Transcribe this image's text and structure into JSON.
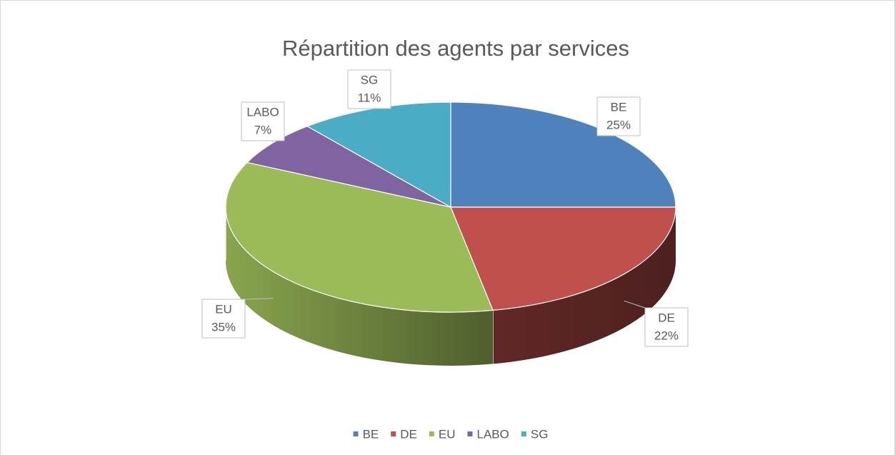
{
  "chart_data": {
    "type": "pie",
    "title": "Répartition des agents par services",
    "categories": [
      "BE",
      "DE",
      "EU",
      "LABO",
      "SG"
    ],
    "values": [
      25,
      22,
      35,
      7,
      11
    ],
    "value_labels": [
      "25%",
      "22%",
      "35%",
      "7%",
      "11%"
    ],
    "colors": [
      "#4f81bd",
      "#c0504d",
      "#9bbb59",
      "#8064a2",
      "#4bacc6"
    ],
    "legend": "bottom"
  }
}
